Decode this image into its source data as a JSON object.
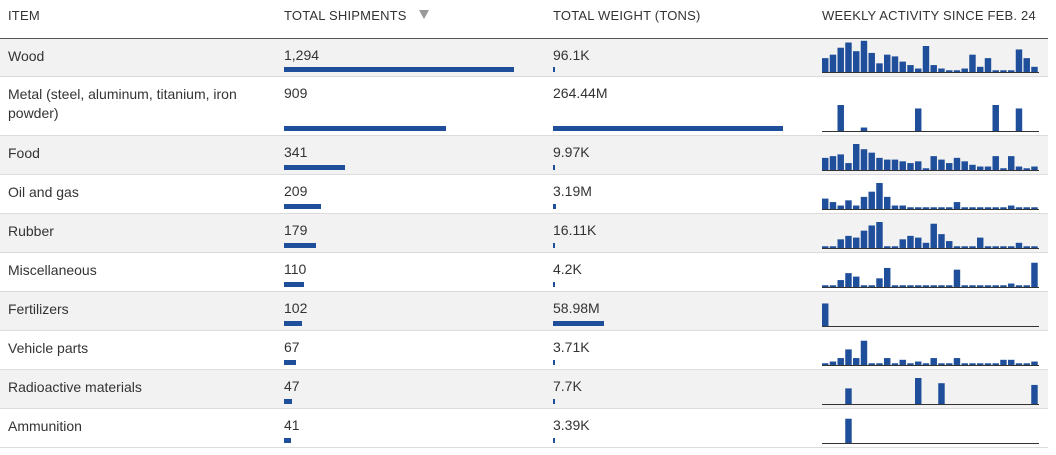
{
  "headers": {
    "item": "ITEM",
    "shipments": "TOTAL SHIPMENTS",
    "weight": "TOTAL WEIGHT (TONS)",
    "activity": "WEEKLY ACTIVITY SINCE FEB. 24"
  },
  "sort_icon": "sort-descending-triangle-icon",
  "colors": {
    "bar": "#1f4e9a",
    "row_alt": "#f2f2f2",
    "baseline": "#333333"
  },
  "chart_data": {
    "type": "table",
    "columns": [
      "ITEM",
      "TOTAL SHIPMENTS",
      "TOTAL WEIGHT (TONS)",
      "WEEKLY ACTIVITY SINCE FEB. 24"
    ],
    "shipments_max": 1294,
    "weight_max_tons": 264440000,
    "rows": [
      {
        "item": "Wood",
        "shipments": 1294,
        "shipments_label": "1,294",
        "weight_tons": 96100,
        "weight_label": "96.1K",
        "weekly": [
          8,
          10,
          14,
          17,
          12,
          18,
          11,
          5,
          10,
          9,
          6,
          4,
          2,
          15,
          4,
          2,
          1,
          1,
          2,
          10,
          3,
          8,
          1,
          1,
          1,
          13,
          8,
          3
        ]
      },
      {
        "item": "Metal (steel, aluminum, titanium, iron powder)",
        "shipments": 909,
        "shipments_label": "909",
        "weight_tons": 264440000,
        "weight_label": "264.44M",
        "weekly": [
          0,
          0,
          15,
          0,
          0,
          2,
          0,
          0,
          0,
          0,
          0,
          0,
          13,
          0,
          0,
          0,
          0,
          0,
          0,
          0,
          0,
          0,
          15,
          0,
          0,
          13,
          0,
          0
        ]
      },
      {
        "item": "Food",
        "shipments": 341,
        "shipments_label": "341",
        "weight_tons": 9970,
        "weight_label": "9.97K",
        "weekly": [
          7,
          8,
          9,
          4,
          15,
          12,
          10,
          7,
          6,
          6,
          5,
          4,
          5,
          1,
          8,
          6,
          4,
          7,
          5,
          3,
          2,
          2,
          8,
          1,
          8,
          2,
          1,
          2
        ]
      },
      {
        "item": "Oil and gas",
        "shipments": 209,
        "shipments_label": "209",
        "weight_tons": 3190000,
        "weight_label": "3.19M",
        "weekly": [
          6,
          4,
          2,
          5,
          2,
          7,
          10,
          15,
          7,
          2,
          2,
          1,
          1,
          1,
          1,
          1,
          1,
          4,
          1,
          1,
          1,
          1,
          1,
          1,
          2,
          1,
          1,
          1
        ]
      },
      {
        "item": "Rubber",
        "shipments": 179,
        "shipments_label": "179",
        "weight_tons": 16110,
        "weight_label": "16.11K",
        "weekly": [
          1,
          1,
          5,
          7,
          6,
          10,
          13,
          15,
          1,
          1,
          5,
          7,
          6,
          3,
          14,
          8,
          4,
          1,
          1,
          1,
          6,
          1,
          1,
          1,
          1,
          3,
          1,
          1
        ]
      },
      {
        "item": "Miscellaneous",
        "shipments": 110,
        "shipments_label": "110",
        "weight_tons": 4200,
        "weight_label": "4.2K",
        "weekly": [
          1,
          1,
          4,
          8,
          6,
          1,
          1,
          5,
          11,
          1,
          1,
          1,
          1,
          1,
          1,
          1,
          1,
          10,
          1,
          1,
          1,
          1,
          1,
          1,
          2,
          1,
          1,
          14
        ]
      },
      {
        "item": "Fertilizers",
        "shipments": 102,
        "shipments_label": "102",
        "weight_tons": 58980000,
        "weight_label": "58.98M",
        "weekly": [
          13,
          0,
          0,
          0,
          0,
          0,
          0,
          0,
          0,
          0,
          0,
          0,
          0,
          0,
          0,
          0,
          0,
          0,
          0,
          0,
          0,
          0,
          0,
          0,
          0,
          0,
          0,
          0
        ]
      },
      {
        "item": "Vehicle parts",
        "shipments": 67,
        "shipments_label": "67",
        "weight_tons": 3710,
        "weight_label": "3.71K",
        "weekly": [
          1,
          2,
          4,
          9,
          4,
          14,
          1,
          1,
          4,
          1,
          3,
          1,
          2,
          1,
          4,
          1,
          1,
          4,
          1,
          1,
          1,
          1,
          1,
          3,
          3,
          1,
          1,
          2
        ]
      },
      {
        "item": "Radioactive materials",
        "shipments": 47,
        "shipments_label": "47",
        "weight_tons": 7700,
        "weight_label": "7.7K",
        "weekly": [
          0,
          0,
          0,
          9,
          0,
          0,
          0,
          0,
          0,
          0,
          0,
          0,
          15,
          0,
          0,
          12,
          0,
          0,
          0,
          0,
          0,
          0,
          0,
          0,
          0,
          0,
          0,
          11
        ]
      },
      {
        "item": "Ammunition",
        "shipments": 41,
        "shipments_label": "41",
        "weight_tons": 3390,
        "weight_label": "3.39K",
        "weekly": [
          0,
          0,
          0,
          14,
          0,
          0,
          0,
          0,
          0,
          0,
          0,
          0,
          0,
          0,
          0,
          0,
          0,
          0,
          0,
          0,
          0,
          0,
          0,
          0,
          0,
          0,
          0,
          0
        ]
      }
    ]
  }
}
